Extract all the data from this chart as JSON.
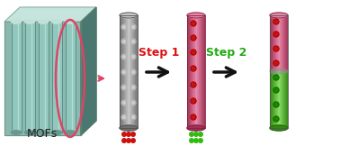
{
  "bg_color": "#ffffff",
  "mof_color_light": "#aacfc5",
  "mof_color_mid": "#8ab8ae",
  "mof_color_dark": "#6a9890",
  "mof_color_shadow": "#4a7870",
  "mof_tube_inner": "#90c8be",
  "mof_tube_highlight": "#c0e0d8",
  "rod_gray_light": "#c8c8c8",
  "rod_gray_mid": "#a0a0a0",
  "rod_gray_dark": "#707070",
  "rod_pink_light": "#e888a8",
  "rod_pink_mid": "#cc5578",
  "rod_pink_dark": "#a03055",
  "rod_green_light": "#88dd66",
  "rod_green_mid": "#55bb33",
  "rod_green_dark": "#338811",
  "dot_red": "#cc1111",
  "dot_green": "#33bb11",
  "dot_white": "#cccccc",
  "dot_white_dark": "#999999",
  "arrow_pink": "#dd4466",
  "arrow_black": "#111111",
  "step1_color": "#dd1111",
  "step2_color": "#22aa11",
  "label_mofs": "MOFs",
  "label_step1": "Step 1",
  "label_step2": "Step 2",
  "figsize": [
    3.78,
    1.62
  ],
  "dpi": 100
}
